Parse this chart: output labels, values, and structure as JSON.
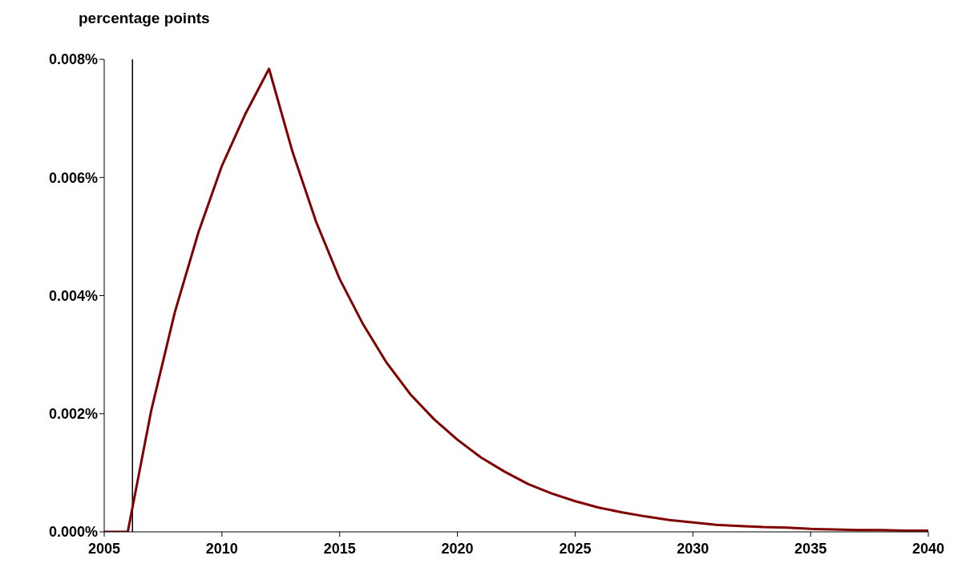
{
  "chart_data": {
    "type": "line",
    "ylabel": "percentage points",
    "x": [
      2005,
      2006,
      2007,
      2008,
      2009,
      2010,
      2011,
      2012,
      2013,
      2014,
      2015,
      2016,
      2017,
      2018,
      2019,
      2020,
      2021,
      2022,
      2023,
      2024,
      2025,
      2026,
      2027,
      2028,
      2029,
      2030,
      2031,
      2032,
      2033,
      2034,
      2035,
      2036,
      2037,
      2038,
      2039,
      2040
    ],
    "series": [
      {
        "color": "#800000",
        "values": [
          0,
          0,
          0.00206,
          0.00372,
          0.00507,
          0.0062,
          0.00708,
          0.00784,
          0.00643,
          0.00525,
          0.00428,
          0.00351,
          0.00286,
          0.00233,
          0.00191,
          0.00156,
          0.00126,
          0.00102,
          0.00081,
          0.00065,
          0.00052,
          0.00041,
          0.00033,
          0.00026,
          0.0002,
          0.00016,
          0.00012,
          0.0001,
          8e-05,
          7e-05,
          5e-05,
          4e-05,
          3e-05,
          3e-05,
          2e-05,
          2e-05
        ]
      }
    ],
    "xlim": [
      2005,
      2040
    ],
    "xticks": [
      2005,
      2010,
      2015,
      2020,
      2025,
      2030,
      2035,
      2040
    ],
    "ylim": [
      0,
      0.008
    ],
    "yticks": [
      {
        "value": 0,
        "label": "0.000%"
      },
      {
        "value": 0.002,
        "label": "0.002%"
      },
      {
        "value": 0.004,
        "label": "0.004%"
      },
      {
        "value": 0.006,
        "label": "0.006%"
      },
      {
        "value": 0.008,
        "label": "0.008%"
      }
    ],
    "ref_lines": [
      {
        "axis": "x",
        "value": 2006.2,
        "color": "#000000"
      }
    ]
  }
}
